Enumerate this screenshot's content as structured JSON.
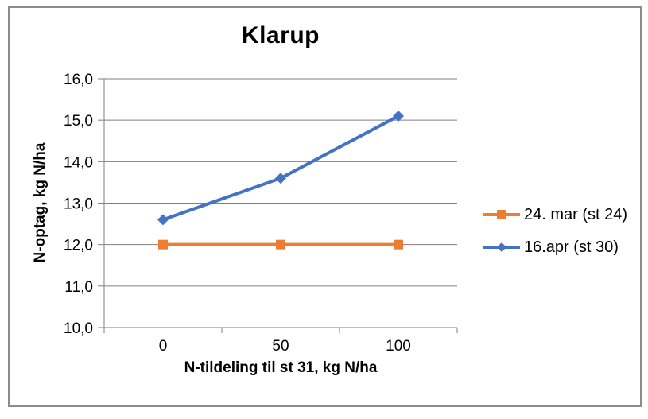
{
  "chart_data": {
    "type": "line",
    "title": "Klarup",
    "categories": [
      "0",
      "50",
      "100"
    ],
    "series": [
      {
        "name": "24. mar (st 24)",
        "values": [
          12.0,
          12.0,
          12.0
        ],
        "color": "#ED7D31",
        "marker": "square"
      },
      {
        "name": "16.apr (st 30)",
        "values": [
          12.6,
          13.6,
          15.1
        ],
        "color": "#4472C4",
        "marker": "diamond"
      }
    ],
    "xlabel": "N-tildeling til st 31, kg N/ha",
    "ylabel": "N-optag, kg N/ha",
    "ylim": [
      10,
      16
    ],
    "ytick_step": 1.0,
    "ytick_labels": [
      "10,0",
      "11,0",
      "12,0",
      "13,0",
      "14,0",
      "15,0",
      "16,0"
    ],
    "grid": true,
    "legend_position": "right",
    "colors": {
      "gridline": "#7F7F7F",
      "axis": "#7F7F7F",
      "text": "#000000",
      "frame_border": "#8C8C8C",
      "background": "#FFFFFF"
    }
  }
}
